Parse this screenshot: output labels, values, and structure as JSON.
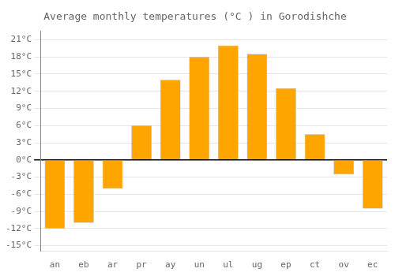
{
  "chart_data": {
    "type": "bar",
    "title": "Average monthly temperatures (°C ) in Gorodishche",
    "categories": [
      "an",
      "eb",
      "ar",
      "pr",
      "ay",
      "un",
      "ul",
      "ug",
      "ep",
      "ct",
      "ov",
      "ec"
    ],
    "values": [
      -12,
      -11,
      -5,
      6,
      14,
      18,
      20,
      18.5,
      12.5,
      4.5,
      -2.5,
      -8.5
    ],
    "color": "#FFA500",
    "ylim": [
      -16,
      22.5
    ],
    "yticks": [
      {
        "value": -15,
        "label": "-15°C"
      },
      {
        "value": -12,
        "label": "-12°C"
      },
      {
        "value": -9,
        "label": "-9°C"
      },
      {
        "value": -6,
        "label": "-6°C"
      },
      {
        "value": -3,
        "label": "-3°C"
      },
      {
        "value": 0,
        "label": "0°C"
      },
      {
        "value": 3,
        "label": "3°C"
      },
      {
        "value": 6,
        "label": "6°C"
      },
      {
        "value": 9,
        "label": "9°C"
      },
      {
        "value": 12,
        "label": "12°C"
      },
      {
        "value": 15,
        "label": "15°C"
      },
      {
        "value": 18,
        "label": "18°C"
      },
      {
        "value": 21,
        "label": "21°C"
      }
    ],
    "grid": true
  }
}
